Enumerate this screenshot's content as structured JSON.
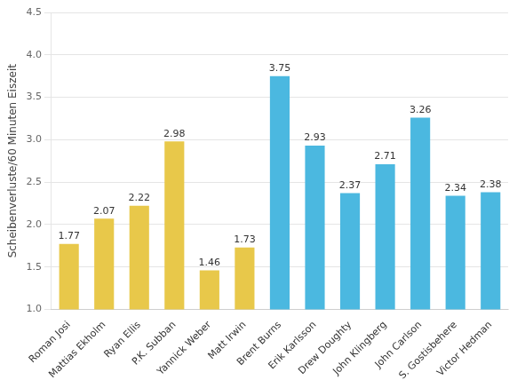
{
  "chart_data": {
    "type": "bar",
    "categories": [
      "Roman Josi",
      "Mattias Ekholm",
      "Ryan Ellis",
      "P.K. Subban",
      "Yannick Weber",
      "Matt Irwin",
      "Brent Burns",
      "Erik Karlsson",
      "Drew Doughty",
      "John Klingberg",
      "John Carlson",
      "S. Gostisbehere",
      "Victor Hedman"
    ],
    "values": [
      1.77,
      2.07,
      2.22,
      2.98,
      1.46,
      1.73,
      3.75,
      2.93,
      2.37,
      2.71,
      3.26,
      2.34,
      2.38
    ],
    "colors": [
      "#E8C84A",
      "#E8C84A",
      "#E8C84A",
      "#E8C84A",
      "#E8C84A",
      "#E8C84A",
      "#4BB8E0",
      "#4BB8E0",
      "#4BB8E0",
      "#4BB8E0",
      "#4BB8E0",
      "#4BB8E0",
      "#4BB8E0"
    ],
    "ylabel": "Scheibenverluste/60 Minuten Eiszeit",
    "ylim": [
      1.0,
      4.5
    ],
    "yticks": [
      {
        "value": 1.0,
        "label": "1.0"
      },
      1.5,
      {
        "value": 2.0,
        "label": "2.0"
      },
      2.5,
      {
        "value": 3.0,
        "label": "3.0"
      },
      3.5,
      {
        "value": 4.0,
        "label": "4.0"
      },
      4.5
    ],
    "grid": true,
    "data_labels": true
  }
}
